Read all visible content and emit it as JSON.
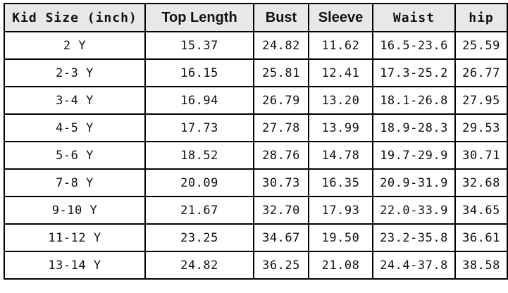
{
  "table": {
    "headers": [
      "Kid Size (inch)",
      "Top Length",
      "Bust",
      "Sleeve",
      "Waist",
      "hip"
    ],
    "rows": [
      [
        "2 Y",
        "15.37",
        "24.82",
        "11.62",
        "16.5-23.6",
        "25.59"
      ],
      [
        "2-3 Y",
        "16.15",
        "25.81",
        "12.41",
        "17.3-25.2",
        "26.77"
      ],
      [
        "3-4 Y",
        "16.94",
        "26.79",
        "13.20",
        "18.1-26.8",
        "27.95"
      ],
      [
        "4-5 Y",
        "17.73",
        "27.78",
        "13.99",
        "18.9-28.3",
        "29.53"
      ],
      [
        "5-6 Y",
        "18.52",
        "28.76",
        "14.78",
        "19.7-29.9",
        "30.71"
      ],
      [
        "7-8 Y",
        "20.09",
        "30.73",
        "16.35",
        "20.9-31.9",
        "32.68"
      ],
      [
        "9-10 Y",
        "21.67",
        "32.70",
        "17.93",
        "22.0-33.9",
        "34.65"
      ],
      [
        "11-12 Y",
        "23.25",
        "34.67",
        "19.50",
        "23.2-35.8",
        "36.61"
      ],
      [
        "13-14 Y",
        "24.82",
        "36.25",
        "21.08",
        "24.4-37.8",
        "38.58"
      ]
    ]
  }
}
